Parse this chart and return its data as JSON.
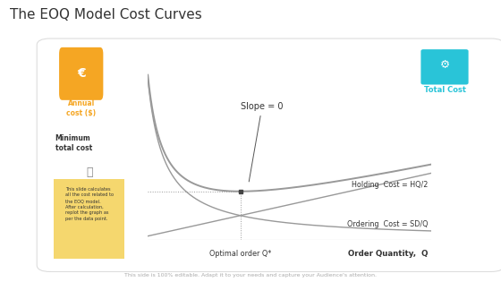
{
  "title": "The EOQ Model Cost Curves",
  "bg_color": "#ffffff",
  "panel_edge": "#dddddd",
  "orange_color": "#f5a623",
  "cyan_color": "#29c4d8",
  "curve_color": "#999999",
  "text_dark": "#333333",
  "text_orange": "#f5a623",
  "text_cyan": "#29c4d8",
  "slope_label": "Slope = 0",
  "annual_cost_label": "Annual\ncost ($)",
  "total_cost_label": "Total Cost",
  "min_cost_label": "Minimum\ntotal cost",
  "holding_label": "Holding  Cost = HQ/2",
  "ordering_label": "Ordering  Cost = SD/Q",
  "optimal_label": "Optimal order Q*",
  "xaxis_label": "Order Quantity,  Q",
  "footnote": "This side is 100% editable. Adapt it to your needs and capture your Audience's attention.",
  "note_color": "#f5d76e",
  "note_text": "This slide calculates\nall the cost related to\nthe EOQ model.\nAfter calculation,\nreplot the graph as\nper the data point."
}
